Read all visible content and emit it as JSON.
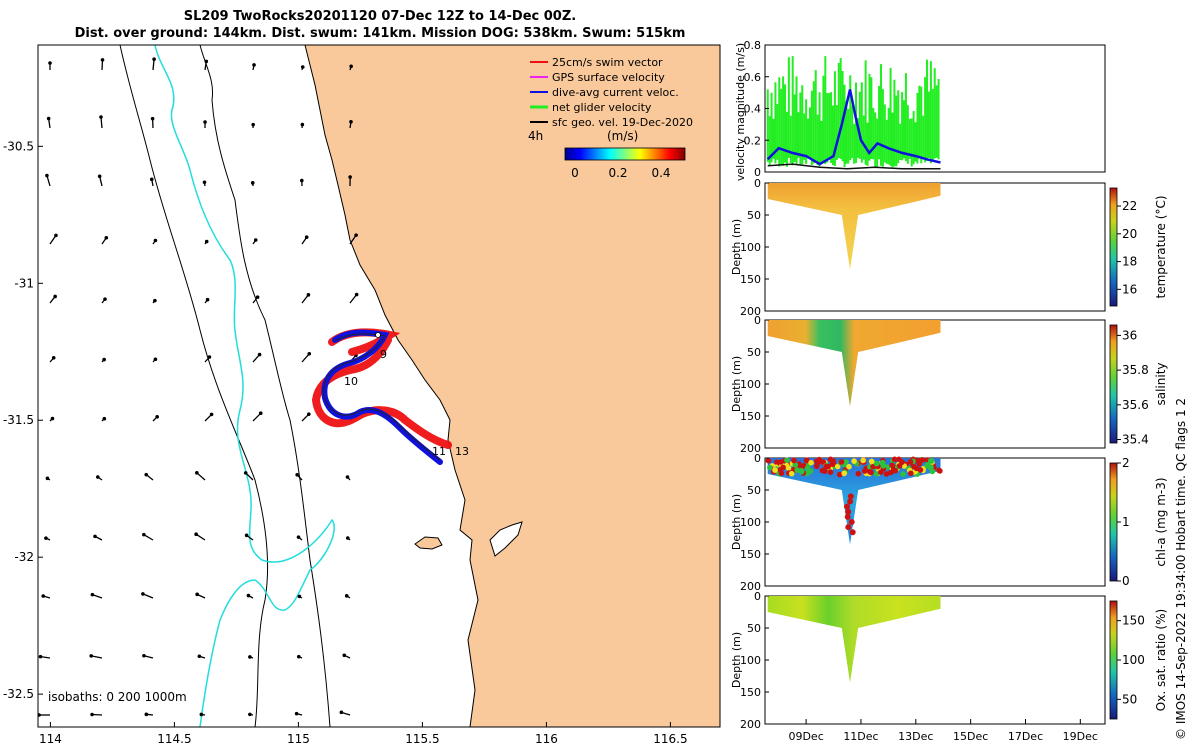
{
  "title": {
    "line1": "SL209 TwoRocks20201120 07-Dec 12Z to 14-Dec 00Z.",
    "line2": "Dist. over ground: 144km. Dist. swum: 141km. Mission DOG: 538km. Swum: 515km"
  },
  "colors": {
    "land": "#f9c89b",
    "track_red": "#ee1111",
    "track_blue": "#1111dd",
    "isobath_cyan": "#22dddd",
    "vel_green": "#22ee22"
  },
  "chart_data": [
    {
      "type": "map",
      "name": "glider track map",
      "xticks": [
        "114",
        "114.5",
        "115",
        "115.5",
        "116",
        "116.5"
      ],
      "xtick_values": [
        114,
        114.5,
        115,
        115.5,
        116,
        116.5
      ],
      "yticks": [
        "-30.5",
        "-31",
        "-31.5",
        "-32",
        "-32.5"
      ],
      "ytick_values": [
        -30.5,
        -31,
        -31.5,
        -32,
        -32.5
      ],
      "xlim": [
        113.95,
        116.7
      ],
      "ylim": [
        -32.62,
        -30.13
      ],
      "legend": [
        {
          "label": "25cm/s swim vector",
          "color": "#ee1111"
        },
        {
          "label": "GPS surface velocity",
          "color": "#ee22ee"
        },
        {
          "label": "dive-avg current veloc.",
          "color": "#1111dd"
        },
        {
          "label": "net glider velocity",
          "color": "#22ee22"
        },
        {
          "label": "sfc geo. vel. 19-Dec-2020",
          "color": "#000000"
        }
      ],
      "time_label": "4h",
      "colorbar": {
        "label": "(m/s)",
        "ticks": [
          "0",
          "0.2",
          "0.4"
        ],
        "range": [
          0,
          0.5
        ]
      },
      "isobaths_label": "isobaths: 0   200   1000m",
      "track_day_labels": [
        {
          "label": "9",
          "lon": 115.29,
          "lat": -31.37
        },
        {
          "label": "10",
          "lon": 115.16,
          "lat": -31.46
        },
        {
          "label": "11",
          "lon": 115.53,
          "lat": -31.71
        },
        {
          "label": "13",
          "lon": 115.62,
          "lat": -31.71
        }
      ]
    },
    {
      "type": "line",
      "name": "velocity magnitude",
      "ylabel": "velocity magnitude (m/s)",
      "yticks": [
        "0",
        "0.2",
        "0.4",
        "0.6",
        "0.8"
      ],
      "ylim": [
        0,
        0.8
      ],
      "xlim": [
        7.5,
        19.9
      ],
      "series": [
        {
          "name": "dive-avg current",
          "color": "#1111dd",
          "x": [
            7.6,
            8,
            8.5,
            9,
            9.5,
            10,
            10.3,
            10.6,
            10.8,
            11,
            11.3,
            11.6,
            12,
            12.5,
            13,
            13.4,
            13.9
          ],
          "values": [
            0.08,
            0.15,
            0.12,
            0.1,
            0.05,
            0.1,
            0.3,
            0.52,
            0.35,
            0.2,
            0.12,
            0.18,
            0.15,
            0.12,
            0.1,
            0.08,
            0.06
          ]
        },
        {
          "name": "GPS/net speed",
          "color": "#000000",
          "x": [
            7.6,
            8.5,
            9.5,
            10.5,
            11.5,
            12.5,
            13.9
          ],
          "values": [
            0.04,
            0.05,
            0.03,
            0.02,
            0.03,
            0.02,
            0.02
          ]
        }
      ]
    },
    {
      "type": "heatmap",
      "name": "temperature section",
      "ylabel": "Depth (m)",
      "yticks": [
        "0",
        "50",
        "100",
        "150",
        "200"
      ],
      "colorbar": {
        "label": "temperature (°C)",
        "ticks": [
          "16",
          "18",
          "20",
          "22"
        ],
        "range": [
          14.8,
          23.3
        ]
      },
      "profile": {
        "days": [
          7.6,
          10.3,
          10.6,
          10.9,
          13.9
        ],
        "max_depth_m": [
          25,
          50,
          135,
          50,
          20
        ]
      }
    },
    {
      "type": "heatmap",
      "name": "salinity section",
      "ylabel": "Depth (m)",
      "yticks": [
        "0",
        "50",
        "100",
        "150",
        "200"
      ],
      "colorbar": {
        "label": "salinity",
        "ticks": [
          "35.4",
          "35.6",
          "35.8",
          "36"
        ],
        "range": [
          35.38,
          36.06
        ]
      },
      "profile": {
        "days": [
          7.6,
          10.3,
          10.6,
          10.9,
          13.9
        ],
        "max_depth_m": [
          25,
          50,
          135,
          50,
          20
        ]
      }
    },
    {
      "type": "heatmap",
      "name": "chlorophyll section",
      "ylabel": "Depth (m)",
      "yticks": [
        "0",
        "50",
        "100",
        "150",
        "200"
      ],
      "colorbar": {
        "label": "chl-a (mg m-3)",
        "ticks": [
          "0",
          "1",
          "2"
        ],
        "range": [
          0,
          2
        ]
      },
      "profile": {
        "days": [
          7.6,
          10.3,
          10.6,
          10.9,
          13.9
        ],
        "max_depth_m": [
          25,
          50,
          135,
          50,
          20
        ]
      }
    },
    {
      "type": "heatmap",
      "name": "oxygen saturation section",
      "ylabel": "Depth (m)",
      "yticks": [
        "0",
        "50",
        "100",
        "150",
        "200"
      ],
      "xticks": [
        "09Dec",
        "11Dec",
        "13Dec",
        "15Dec",
        "17Dec",
        "19Dec"
      ],
      "xtick_values": [
        9,
        11,
        13,
        15,
        17,
        19
      ],
      "colorbar": {
        "label": "Ox. sat. ratio (%)",
        "ticks": [
          "50",
          "100",
          "150"
        ],
        "range": [
          25,
          175
        ]
      },
      "profile": {
        "days": [
          7.6,
          10.3,
          10.6,
          10.9,
          13.9
        ],
        "max_depth_m": [
          25,
          50,
          135,
          50,
          20
        ]
      }
    }
  ],
  "footer": {
    "credit": "© IMOS 14-Sep-2022 19:34:00 Hobart time. QC flags 1  2"
  }
}
